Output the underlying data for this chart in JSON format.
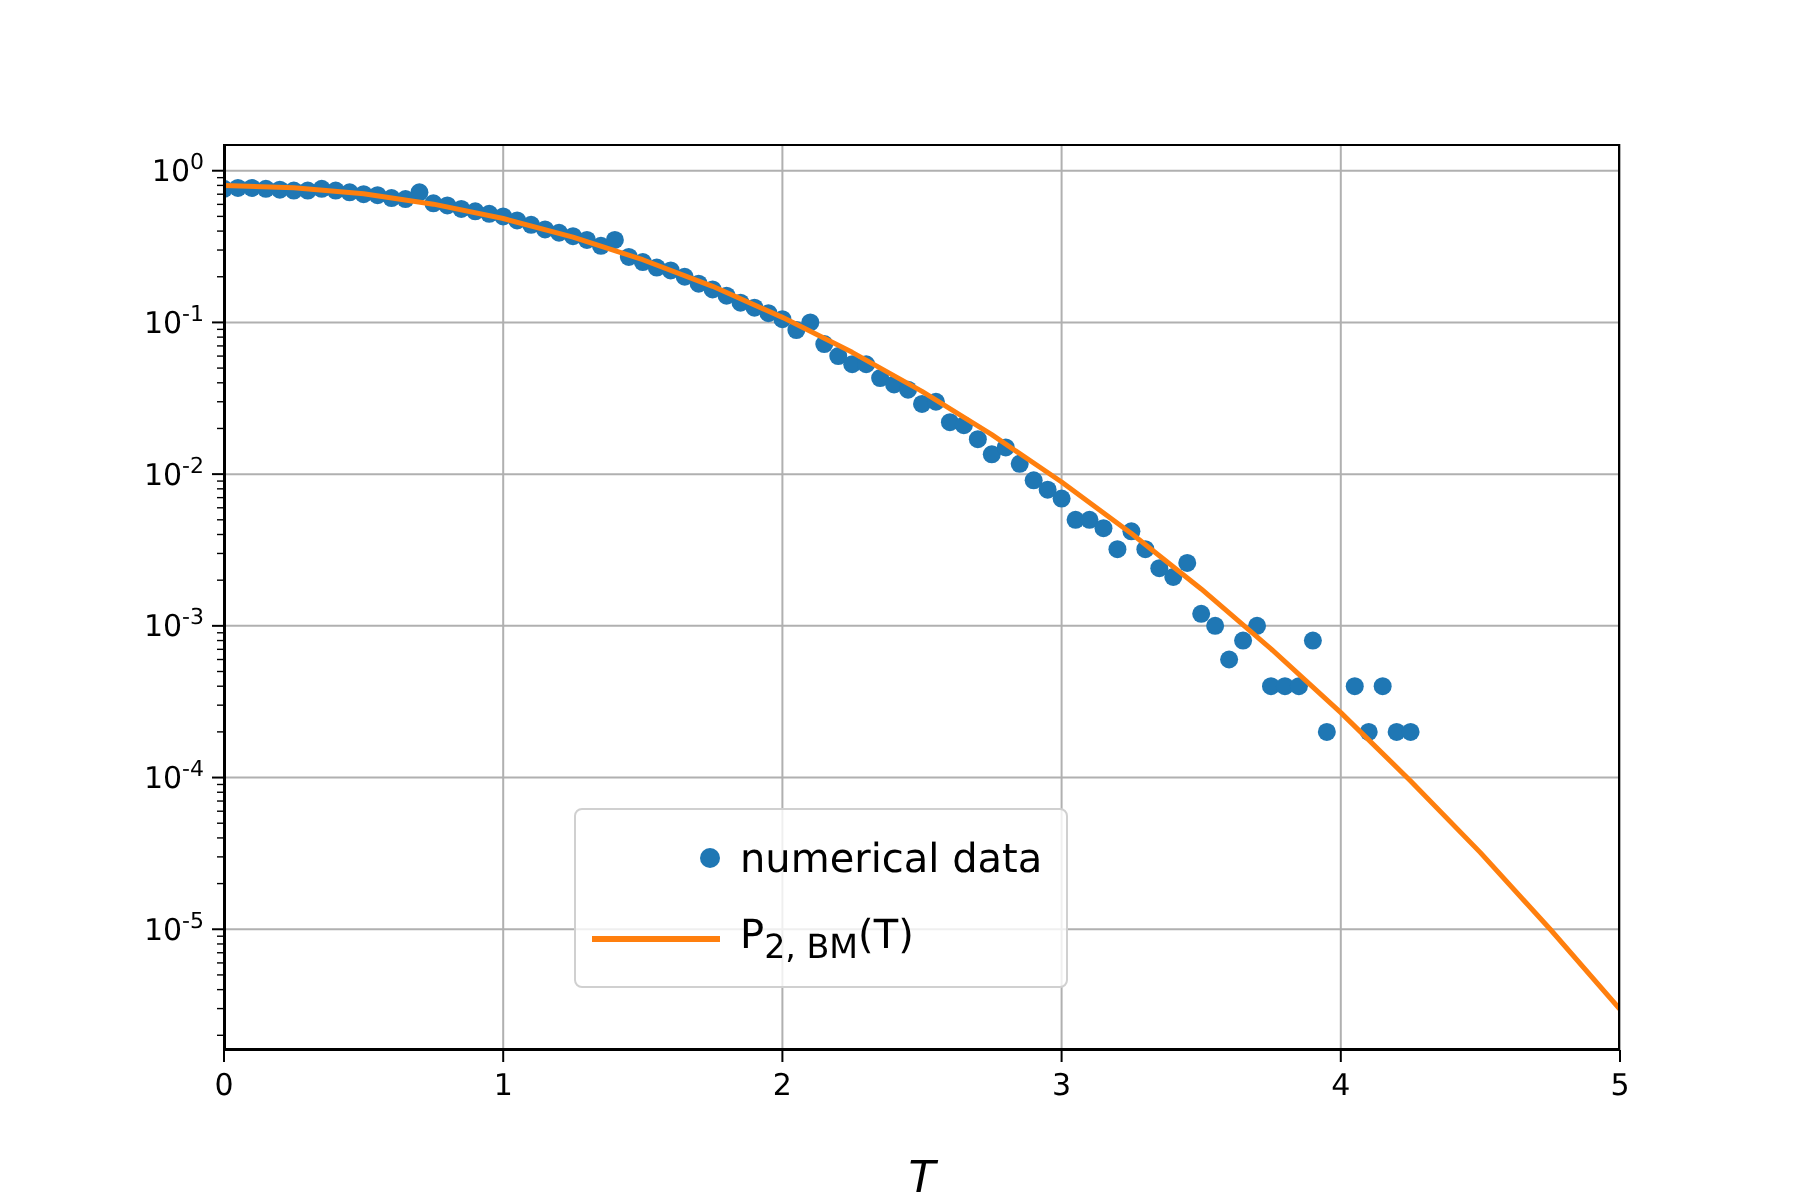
{
  "chart_data": {
    "type": "scatter",
    "xlabel": "T",
    "log": "y",
    "grid": true,
    "legend": "bottom",
    "xlim": [
      0,
      5
    ],
    "xticks": [
      0,
      1,
      2,
      3,
      4,
      5
    ],
    "ylim": [
      1.6e-06,
      1.5
    ],
    "yticks": [
      {
        "value": 2e-06,
        "label": null
      },
      {
        "value": 3e-06,
        "label": null
      },
      {
        "value": 4e-06,
        "label": null
      },
      {
        "value": 5e-06,
        "label": null
      },
      {
        "value": 6e-06,
        "label": null
      },
      {
        "value": 7e-06,
        "label": null
      },
      {
        "value": 8e-06,
        "label": null
      },
      {
        "value": 9e-06,
        "label": null
      },
      {
        "value": 1e-05,
        "label": "10$^{-5}$"
      },
      {
        "value": 2e-05,
        "label": null
      },
      {
        "value": 3e-05,
        "label": null
      },
      {
        "value": 4e-05,
        "label": null
      },
      {
        "value": 5e-05,
        "label": null
      },
      {
        "value": 6e-05,
        "label": null
      },
      {
        "value": 7e-05,
        "label": null
      },
      {
        "value": 8e-05,
        "label": null
      },
      {
        "value": 9e-05,
        "label": null
      },
      {
        "value": 0.0001,
        "label": "10$^{-4}$"
      },
      {
        "value": 0.0002,
        "label": null
      },
      {
        "value": 0.0003,
        "label": null
      },
      {
        "value": 0.0004,
        "label": null
      },
      {
        "value": 0.0005,
        "label": null
      },
      {
        "value": 0.0006,
        "label": null
      },
      {
        "value": 0.0007,
        "label": null
      },
      {
        "value": 0.0008,
        "label": null
      },
      {
        "value": 0.0009,
        "label": null
      },
      {
        "value": 0.001,
        "label": "10$^{-3}$"
      },
      {
        "value": 0.002,
        "label": null
      },
      {
        "value": 0.003,
        "label": null
      },
      {
        "value": 0.004,
        "label": null
      },
      {
        "value": 0.005,
        "label": null
      },
      {
        "value": 0.006,
        "label": null
      },
      {
        "value": 0.007,
        "label": null
      },
      {
        "value": 0.008,
        "label": null
      },
      {
        "value": 0.009,
        "label": null
      },
      {
        "value": 0.01,
        "label": "10$^{-2}$"
      },
      {
        "value": 0.02,
        "label": null
      },
      {
        "value": 0.03,
        "label": null
      },
      {
        "value": 0.04,
        "label": null
      },
      {
        "value": 0.05,
        "label": null
      },
      {
        "value": 0.06,
        "label": null
      },
      {
        "value": 0.07,
        "label": null
      },
      {
        "value": 0.08,
        "label": null
      },
      {
        "value": 0.09,
        "label": null
      },
      {
        "value": 0.1,
        "label": "10$^{-1}$"
      },
      {
        "value": 0.2,
        "label": null
      },
      {
        "value": 0.3,
        "label": null
      },
      {
        "value": 0.4,
        "label": null
      },
      {
        "value": 0.5,
        "label": null
      },
      {
        "value": 0.6,
        "label": null
      },
      {
        "value": 0.7,
        "label": null
      },
      {
        "value": 0.8,
        "label": null
      },
      {
        "value": 0.9,
        "label": null
      },
      {
        "value": 1,
        "label": "10$^{0}$"
      }
    ],
    "series": [
      {
        "name": "numerical data",
        "marker": "circle",
        "color": "#1f77b4",
        "x": [
          0,
          0.05,
          0.1,
          0.15,
          0.2,
          0.25,
          0.3,
          0.35,
          0.4,
          0.45,
          0.5,
          0.55,
          0.6,
          0.65,
          0.7,
          0.75,
          0.8,
          0.85,
          0.9,
          0.95,
          1.0,
          1.05,
          1.1,
          1.15,
          1.2,
          1.25,
          1.3,
          1.35,
          1.4,
          1.45,
          1.5,
          1.55,
          1.6,
          1.65,
          1.7,
          1.75,
          1.8,
          1.85,
          1.9,
          1.95,
          2.0,
          2.05,
          2.1,
          2.15,
          2.2,
          2.25,
          2.3,
          2.35,
          2.4,
          2.45,
          2.5,
          2.55,
          2.6,
          2.65,
          2.7,
          2.75,
          2.8,
          2.85,
          2.9,
          2.95,
          3.0,
          3.05,
          3.1,
          3.15,
          3.2,
          3.25,
          3.3,
          3.35,
          3.4,
          3.45,
          3.5,
          3.55,
          3.6,
          3.65,
          3.7,
          3.75,
          3.8,
          3.85,
          3.9,
          3.95,
          4.0,
          4.05,
          4.1,
          4.15,
          4.2,
          4.25
        ],
        "values": [
          0.76,
          0.77,
          0.77,
          0.76,
          0.75,
          0.74,
          0.74,
          0.76,
          0.74,
          0.72,
          0.7,
          0.69,
          0.66,
          0.65,
          0.72,
          0.61,
          0.59,
          0.56,
          0.54,
          0.52,
          0.5,
          0.47,
          0.44,
          0.41,
          0.39,
          0.37,
          0.35,
          0.32,
          0.35,
          0.27,
          0.25,
          0.23,
          0.22,
          0.2,
          0.18,
          0.165,
          0.15,
          0.135,
          0.125,
          0.115,
          0.105,
          0.089,
          0.1,
          0.072,
          0.06,
          0.053,
          0.053,
          0.043,
          0.039,
          0.036,
          0.029,
          0.03,
          0.022,
          0.021,
          0.017,
          0.0135,
          0.015,
          0.0117,
          0.0091,
          0.0079,
          0.0069,
          0.005,
          0.005,
          0.0044,
          0.0032,
          0.0042,
          0.0032,
          0.0024,
          0.0021,
          0.0026,
          0.0012,
          0.001,
          0.0006,
          0.0008,
          0.001,
          0.0004,
          0.0004,
          0.0004,
          0.0008,
          0.0002,
          null,
          0.0004,
          0.0002,
          0.0004,
          0.0002,
          0.0002
        ]
      },
      {
        "name": "P$_{2, BM}$(T)",
        "type": "line",
        "marker": "none",
        "line_style": "solid",
        "color": "#ff7f0e",
        "x": [
          0,
          0.25,
          0.5,
          0.75,
          1,
          1.25,
          1.5,
          1.75,
          2,
          2.25,
          2.5,
          2.75,
          3,
          3.25,
          3.5,
          3.75,
          4,
          4.25,
          4.5,
          4.75,
          5
        ],
        "values": [
          0.798,
          0.773,
          0.704,
          0.602,
          0.484,
          0.365,
          0.259,
          0.173,
          0.108,
          0.0635,
          0.0351,
          0.0182,
          0.00887,
          0.00406,
          0.00175,
          0.000705,
          0.000268,
          9.5e-05,
          3.2e-05,
          1e-05,
          2.97e-06
        ]
      }
    ]
  }
}
